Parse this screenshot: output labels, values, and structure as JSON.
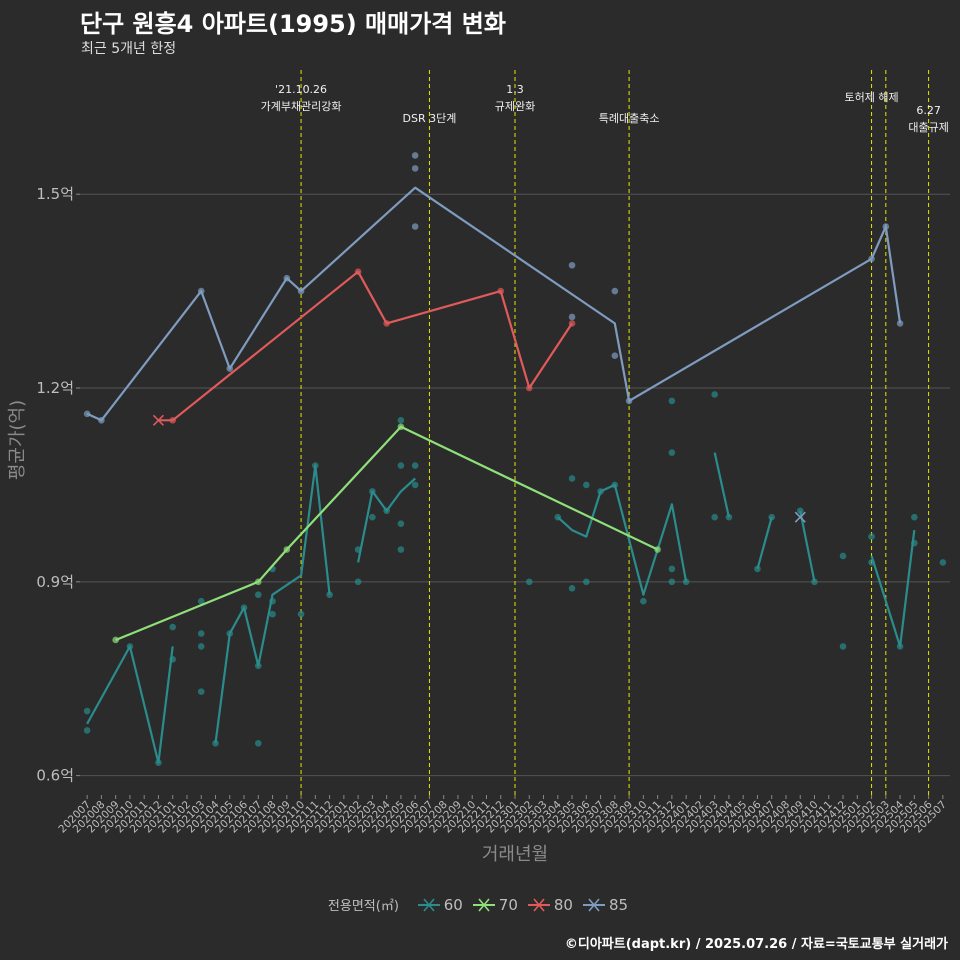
{
  "header": {
    "title": "단구 원흥4 아파트(1995) 매매가격 변화",
    "subtitle": "최근 5개년 한정",
    "caption": "©디아파트(dapt.kr) / 2025.07.26 / 자료=국토교통부 실거래가"
  },
  "colors": {
    "background": "#2b2b2b",
    "grid": "#555555",
    "event_line": "#e5e500",
    "s60": "#2a8c8c",
    "s70": "#8fe07a",
    "s80": "#e05a5a",
    "s85": "#7f9cc0"
  },
  "legend": {
    "title": "전용면적(㎡)",
    "items": [
      "60",
      "70",
      "80",
      "85"
    ]
  },
  "chart_data": {
    "type": "line",
    "xlabel": "거래년월",
    "ylabel": "평균가(억)",
    "ylim": [
      0.57,
      1.7
    ],
    "y_ticks": [
      0.6,
      0.9,
      1.2,
      1.5
    ],
    "y_tick_labels": [
      "0.6억",
      "0.9억",
      "1.2억",
      "1.5억"
    ],
    "x_categories": [
      "202007",
      "202008",
      "202009",
      "202010",
      "202011",
      "202012",
      "202101",
      "202102",
      "202103",
      "202104",
      "202105",
      "202106",
      "202107",
      "202108",
      "202109",
      "202110",
      "202111",
      "202112",
      "202201",
      "202202",
      "202203",
      "202204",
      "202205",
      "202206",
      "202207",
      "202208",
      "202209",
      "202210",
      "202211",
      "202212",
      "202301",
      "202302",
      "202303",
      "202304",
      "202305",
      "202306",
      "202307",
      "202308",
      "202309",
      "202310",
      "202311",
      "202312",
      "202401",
      "202402",
      "202403",
      "202404",
      "202405",
      "202406",
      "202407",
      "202408",
      "202409",
      "202410",
      "202411",
      "202412",
      "202501",
      "202502",
      "202503",
      "202504",
      "202505",
      "202506",
      "202507"
    ],
    "events": [
      {
        "x": "202110",
        "lines": [
          "'21.10.26",
          "가계부채관리강화"
        ],
        "row": 0
      },
      {
        "x": "202207",
        "lines": [
          "DSR 3단계"
        ],
        "row": 2
      },
      {
        "x": "202301",
        "lines": [
          "1.3",
          "규제완화"
        ],
        "row": 0
      },
      {
        "x": "202309",
        "lines": [
          "특례대출축소"
        ],
        "row": 2
      },
      {
        "x": "202502",
        "lines": [
          "토허제 해제"
        ],
        "row": 1
      },
      {
        "x": "202503",
        "lines": [],
        "row": 1
      },
      {
        "x": "202506",
        "lines": [
          "6.27",
          "대출규제"
        ],
        "row": 1
      }
    ],
    "series": [
      {
        "name": "60",
        "line": [
          [
            "202007",
            0.68
          ],
          [
            "202010",
            0.8
          ],
          [
            "202012",
            0.62
          ],
          [
            "202101",
            0.8
          ],
          [
            "202101",
            null
          ],
          [
            "202104",
            0.65
          ],
          [
            "202105",
            0.82
          ],
          [
            "202106",
            0.86
          ],
          [
            "202107",
            0.77
          ],
          [
            "202108",
            0.88
          ],
          [
            "202110",
            0.91
          ],
          [
            "202111",
            1.08
          ],
          [
            "202112",
            0.88
          ],
          [
            "202112",
            null
          ],
          [
            "202202",
            0.93
          ],
          [
            "202203",
            1.04
          ],
          [
            "202204",
            1.01
          ],
          [
            "202205",
            1.04
          ],
          [
            "202206",
            1.06
          ],
          [
            "202206",
            null
          ],
          [
            "202304",
            1.0
          ],
          [
            "202305",
            0.98
          ],
          [
            "202306",
            0.97
          ],
          [
            "202307",
            1.04
          ],
          [
            "202308",
            1.05
          ],
          [
            "202310",
            0.88
          ],
          [
            "202312",
            1.02
          ],
          [
            "202401",
            0.9
          ],
          [
            "202401",
            null
          ],
          [
            "202403",
            1.1
          ],
          [
            "202404",
            1.0
          ],
          [
            "202404",
            null
          ],
          [
            "202406",
            0.92
          ],
          [
            "202407",
            1.0
          ],
          [
            "202407",
            null
          ],
          [
            "202409",
            1.01
          ],
          [
            "202410",
            0.9
          ],
          [
            "202410",
            null
          ],
          [
            "202502",
            0.94
          ],
          [
            "202504",
            0.8
          ],
          [
            "202505",
            0.98
          ]
        ],
        "points": [
          [
            "202007",
            0.7
          ],
          [
            "202007",
            0.67
          ],
          [
            "202010",
            0.8
          ],
          [
            "202012",
            0.62
          ],
          [
            "202101",
            0.83
          ],
          [
            "202101",
            0.78
          ],
          [
            "202103",
            0.87
          ],
          [
            "202103",
            0.82
          ],
          [
            "202103",
            0.8
          ],
          [
            "202103",
            0.73
          ],
          [
            "202104",
            0.65
          ],
          [
            "202105",
            0.82
          ],
          [
            "202106",
            0.86
          ],
          [
            "202107",
            0.88
          ],
          [
            "202107",
            0.77
          ],
          [
            "202107",
            0.65
          ],
          [
            "202108",
            0.92
          ],
          [
            "202108",
            0.87
          ],
          [
            "202108",
            0.85
          ],
          [
            "202110",
            0.85
          ],
          [
            "202111",
            1.08
          ],
          [
            "202112",
            0.88
          ],
          [
            "202202",
            0.95
          ],
          [
            "202202",
            0.9
          ],
          [
            "202203",
            1.0
          ],
          [
            "202203",
            1.04
          ],
          [
            "202204",
            1.01
          ],
          [
            "202205",
            1.15
          ],
          [
            "202205",
            0.99
          ],
          [
            "202205",
            0.95
          ],
          [
            "202205",
            1.08
          ],
          [
            "202206",
            1.08
          ],
          [
            "202206",
            1.05
          ],
          [
            "202302",
            0.9
          ],
          [
            "202304",
            1.0
          ],
          [
            "202305",
            1.06
          ],
          [
            "202305",
            0.89
          ],
          [
            "202306",
            1.05
          ],
          [
            "202306",
            0.9
          ],
          [
            "202307",
            1.04
          ],
          [
            "202308",
            1.05
          ],
          [
            "202310",
            0.87
          ],
          [
            "202312",
            1.18
          ],
          [
            "202312",
            1.1
          ],
          [
            "202312",
            0.92
          ],
          [
            "202312",
            0.9
          ],
          [
            "202401",
            0.9
          ],
          [
            "202403",
            1.19
          ],
          [
            "202403",
            1.0
          ],
          [
            "202404",
            1.0
          ],
          [
            "202406",
            0.92
          ],
          [
            "202407",
            1.0
          ],
          [
            "202409",
            1.01
          ],
          [
            "202410",
            0.9
          ],
          [
            "202412",
            0.94
          ],
          [
            "202412",
            0.8
          ],
          [
            "202502",
            0.97
          ],
          [
            "202502",
            0.93
          ],
          [
            "202504",
            0.8
          ],
          [
            "202505",
            1.0
          ],
          [
            "202505",
            0.96
          ],
          [
            "202507",
            0.93
          ]
        ]
      },
      {
        "name": "70",
        "line": [
          [
            "202009",
            0.81
          ],
          [
            "202107",
            0.9
          ],
          [
            "202109",
            0.95
          ],
          [
            "202205",
            1.14
          ],
          [
            "202311",
            0.95
          ]
        ],
        "points": [
          [
            "202009",
            0.81
          ],
          [
            "202107",
            0.9
          ],
          [
            "202109",
            0.95
          ],
          [
            "202205",
            1.14
          ],
          [
            "202311",
            0.95
          ]
        ]
      },
      {
        "name": "80",
        "line": [
          [
            "202012",
            1.15
          ],
          [
            "202101",
            1.15
          ],
          [
            "202202",
            1.38
          ],
          [
            "202204",
            1.3
          ],
          [
            "202212",
            1.35
          ],
          [
            "202302",
            1.2
          ],
          [
            "202305",
            1.3
          ]
        ],
        "points": [
          [
            "202101",
            1.15
          ],
          [
            "202202",
            1.38
          ],
          [
            "202204",
            1.3
          ],
          [
            "202212",
            1.35
          ],
          [
            "202302",
            1.2
          ],
          [
            "202305",
            1.3
          ]
        ],
        "crosses": [
          [
            "202012",
            1.15
          ]
        ]
      },
      {
        "name": "85",
        "line": [
          [
            "202007",
            1.16
          ],
          [
            "202008",
            1.15
          ],
          [
            "202103",
            1.35
          ],
          [
            "202105",
            1.23
          ],
          [
            "202109",
            1.37
          ],
          [
            "202110",
            1.35
          ],
          [
            "202206",
            1.51
          ],
          [
            "202308",
            1.3
          ],
          [
            "202309",
            1.18
          ],
          [
            "202502",
            1.4
          ],
          [
            "202503",
            1.45
          ],
          [
            "202504",
            1.3
          ]
        ],
        "points": [
          [
            "202007",
            1.16
          ],
          [
            "202008",
            1.15
          ],
          [
            "202103",
            1.35
          ],
          [
            "202105",
            1.23
          ],
          [
            "202109",
            1.37
          ],
          [
            "202110",
            1.35
          ],
          [
            "202206",
            1.56
          ],
          [
            "202206",
            1.54
          ],
          [
            "202206",
            1.45
          ],
          [
            "202305",
            1.39
          ],
          [
            "202305",
            1.31
          ],
          [
            "202308",
            1.35
          ],
          [
            "202308",
            1.25
          ],
          [
            "202309",
            1.18
          ],
          [
            "202502",
            1.4
          ],
          [
            "202503",
            1.45
          ],
          [
            "202504",
            1.3
          ]
        ],
        "crosses": [
          [
            "202409",
            1.0
          ]
        ]
      }
    ]
  }
}
